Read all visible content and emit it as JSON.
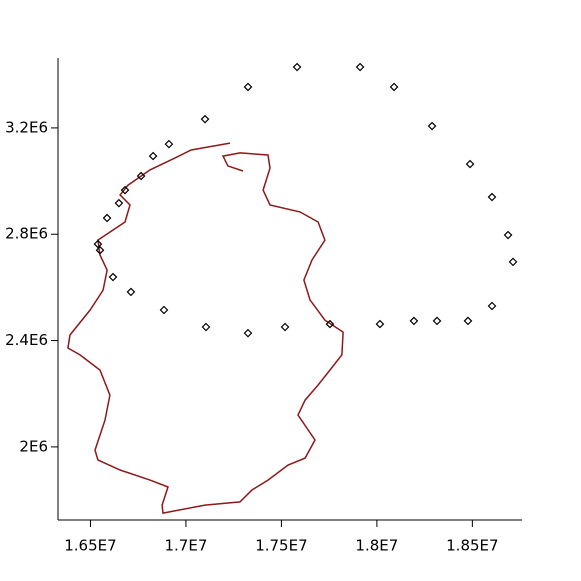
{
  "chart_data": {
    "type": "scatter",
    "xlim": [
      16330000,
      18760000
    ],
    "ylim": [
      1725000,
      3463000
    ],
    "xticks": [
      {
        "value": 16500000,
        "label": "1.65E7"
      },
      {
        "value": 17000000,
        "label": "1.7E7"
      },
      {
        "value": 17500000,
        "label": "1.75E7"
      },
      {
        "value": 18000000,
        "label": "1.8E7"
      },
      {
        "value": 18500000,
        "label": "1.85E7"
      }
    ],
    "yticks": [
      {
        "value": 2000000,
        "label": "2E6"
      },
      {
        "value": 2400000,
        "label": "2.4E6"
      },
      {
        "value": 2800000,
        "label": "2.8E6"
      },
      {
        "value": 3200000,
        "label": "3.2E6"
      }
    ],
    "series": [
      {
        "color": "#8b1a1a",
        "mode": "line",
        "x": [
          17299000,
          17220000,
          17194000,
          17283000,
          17430000,
          17440000,
          17404000,
          17440000,
          17597000,
          17692000,
          17728000,
          17660000,
          17618000,
          17650000,
          17728000,
          17823000,
          17817000,
          17754000,
          17692000,
          17624000,
          17587000,
          17676000,
          17624000,
          17535000,
          17430000,
          17346000,
          17283000,
          17100000,
          16880000,
          16875000,
          16906000,
          16812000,
          16655000,
          16539000,
          16524000,
          16576000,
          16602000,
          16550000,
          16445000,
          16382000,
          16393000,
          16498000,
          16566000,
          16587000,
          16550000,
          16539000,
          16602000,
          16681000,
          16707000,
          16655000,
          16697000,
          16812000,
          16943000,
          17027000,
          17231000
        ],
        "values": [
          3038000,
          3057000,
          3094000,
          3106000,
          3098000,
          3049000,
          2966000,
          2910000,
          2884000,
          2846000,
          2778000,
          2703000,
          2628000,
          2553000,
          2477000,
          2432000,
          2346000,
          2289000,
          2233000,
          2176000,
          2120000,
          2026000,
          1958000,
          1932000,
          1875000,
          1838000,
          1793000,
          1781000,
          1751000,
          1781000,
          1849000,
          1875000,
          1913000,
          1951000,
          1988000,
          2101000,
          2195000,
          2289000,
          2346000,
          2372000,
          2421000,
          2515000,
          2590000,
          2665000,
          2722000,
          2778000,
          2808000,
          2846000,
          2910000,
          2948000,
          2985000,
          3042000,
          3087000,
          3117000,
          3143000
        ]
      },
      {
        "color": "#000000",
        "mode": "markers",
        "x": [
          16539000,
          16550000,
          16618000,
          16712000,
          16885000,
          17105000,
          17325000,
          17519000,
          17754000,
          18016000,
          18194000,
          18315000,
          18477000,
          18603000,
          18713000,
          18687000,
          18603000,
          18488000,
          18289000,
          18090000,
          17912000,
          17582000,
          17325000,
          17100000,
          16911000,
          16828000,
          16765000,
          16681000,
          16649000,
          16587000
        ],
        "values": [
          2763000,
          2740000,
          2639000,
          2583000,
          2515000,
          2451000,
          2428000,
          2451000,
          2462000,
          2462000,
          2474000,
          2474000,
          2474000,
          2530000,
          2696000,
          2797000,
          2940000,
          3064000,
          3207000,
          3354000,
          3429000,
          3429000,
          3354000,
          3233000,
          3139000,
          3094000,
          3019000,
          2966000,
          2917000,
          2861000
        ]
      }
    ]
  }
}
